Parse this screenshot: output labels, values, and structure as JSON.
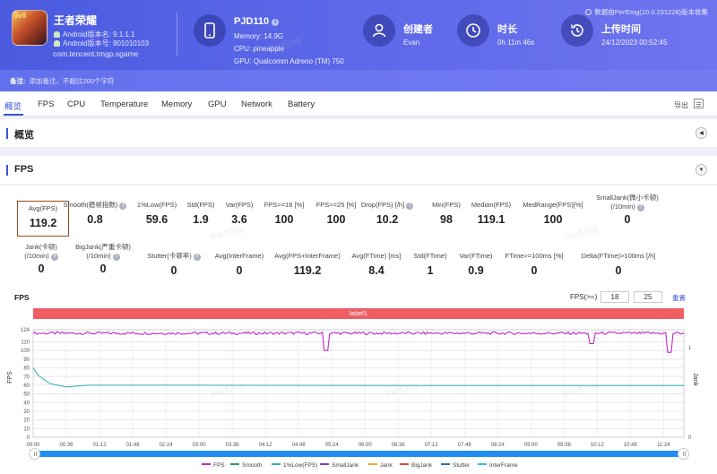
{
  "app": {
    "icon_badge": "5v5",
    "name": "王者荣耀",
    "android_version": "Android版本名: 9.1.1.1",
    "android_code": "Android版本号: 901010103",
    "package": "com.tencent.tmgp.sgame"
  },
  "device": {
    "name": "PJD110",
    "info_glyph": "i",
    "memory": "Memory: 14.9G",
    "cpu": "CPU: pineapple",
    "gpu": "GPU: Qualcomm Adreno (TM) 750"
  },
  "creator": {
    "title": "创建者",
    "value": "Evan"
  },
  "duration": {
    "title": "时长",
    "value": "0h 11m 46s"
  },
  "upload": {
    "title": "上传时间",
    "value": "24/12/2023 00:52:45"
  },
  "perfdog_version": "数据由PerfDog(10.0.231228)版本收集",
  "note": {
    "label": "备注:",
    "placeholder": "添加备注，不超过200个字符"
  },
  "tabs": [
    "概览",
    "FPS",
    "CPU",
    "Temperature",
    "Memory",
    "GPU",
    "Network",
    "Battery"
  ],
  "export_label": "导出",
  "sections": {
    "overview": "概览",
    "fps": "FPS"
  },
  "metrics_row1": [
    {
      "label": "Avg(FPS)",
      "value": "119.2",
      "help": false
    },
    {
      "label": "Smooth(稳帧指数)",
      "value": "0.8",
      "help": true
    },
    {
      "label": "1%Low(FPS)",
      "value": "59.6",
      "help": false
    },
    {
      "label": "Std(FPS)",
      "value": "1.9",
      "help": false
    },
    {
      "label": "Var(FPS)",
      "value": "3.6",
      "help": false
    },
    {
      "label": "FPS>=18 [%]",
      "value": "100",
      "help": false
    },
    {
      "label": "FPS>=25 [%]",
      "value": "100",
      "help": false
    },
    {
      "label": "Drop(FPS) [/h]",
      "value": "10.2",
      "help": true
    },
    {
      "label": "Min(FPS)",
      "value": "98",
      "help": false
    },
    {
      "label": "Median(FPS)",
      "value": "119.1",
      "help": false
    },
    {
      "label": "MedRange(FPS)[%]",
      "value": "100",
      "help": false
    },
    {
      "label": "SmallJank(微小卡顿)",
      "label2": "(/10min)",
      "value": "0",
      "help": true
    }
  ],
  "metrics_row2": [
    {
      "label": "Jank(卡顿)",
      "label2": "(/10min)",
      "value": "0",
      "help": true
    },
    {
      "label": "BigJank(严重卡顿)",
      "label2": "(/10min)",
      "value": "0",
      "help": true
    },
    {
      "label": "Stutter(卡顿率)",
      "value": "0",
      "help": true
    },
    {
      "label": "Avg(InterFrame)",
      "value": "0",
      "help": false
    },
    {
      "label": "Avg(FPS+InterFrame)",
      "value": "119.2",
      "help": false
    },
    {
      "label": "Avg(FTime) [ms]",
      "value": "8.4",
      "help": false
    },
    {
      "label": "Std(FTime)",
      "value": "1",
      "help": false
    },
    {
      "label": "Var(FTime)",
      "value": "0.9",
      "help": false
    },
    {
      "label": "FTime>=100ms [%]",
      "value": "0",
      "help": false
    },
    {
      "label": "Delta(FTime)>100ms [/h]",
      "value": "0",
      "help": false
    }
  ],
  "chart_controls": {
    "title": "FPS",
    "fps_label": "FPS(>=)",
    "fps_threshold_1": "18",
    "fps_threshold_2": "25",
    "reset_label": "重置"
  },
  "watermark": "PerfDog",
  "chart_data": {
    "type": "line",
    "title": "FPS",
    "band_label": "label1",
    "ylabel": "FPS",
    "ylabel_right": "Jank",
    "ylim": [
      0,
      124
    ],
    "yticks": [
      0,
      10,
      20,
      30,
      40,
      50,
      60,
      70,
      80,
      90,
      100,
      110,
      124
    ],
    "ylim_right": [
      0,
      1
    ],
    "yticks_right": [
      0,
      1
    ],
    "xlim": [
      "00:00",
      "11:46"
    ],
    "xticks": [
      "00:00",
      "00:36",
      "01:12",
      "01:48",
      "02:24",
      "03:00",
      "03:36",
      "04:12",
      "04:48",
      "05:24",
      "06:00",
      "06:36",
      "07:12",
      "07:48",
      "08:24",
      "09:00",
      "09:36",
      "10:12",
      "10:48",
      "11:24"
    ],
    "grid": true,
    "legend_position": "bottom",
    "series": [
      {
        "name": "FPS",
        "color": "#c026c9",
        "x_min": [
          0,
          5.1,
          5.3,
          9.9,
          10.1,
          11.3,
          11.5,
          11.77
        ],
        "values": [
          120,
          120,
          100,
          120,
          108,
          120,
          98,
          118
        ]
      },
      {
        "name": "Smooth",
        "color": "#2f9e62",
        "values": []
      },
      {
        "name": "1%Low(FPS)",
        "color": "#31b3a8",
        "x_min": [
          0,
          0.08,
          0.3,
          0.6,
          1.0,
          3.0,
          7.0,
          11.77
        ],
        "values": [
          80,
          72,
          62,
          58,
          60,
          60,
          59.6,
          59.6
        ]
      },
      {
        "name": "SmallJank",
        "color": "#7b3fbf",
        "values": []
      },
      {
        "name": "Jank",
        "color": "#f0a23a",
        "values": []
      },
      {
        "name": "BigJank",
        "color": "#e24a3b",
        "values": []
      },
      {
        "name": "Stutter",
        "color": "#2d6fb0",
        "values": []
      },
      {
        "name": "InterFrame",
        "color": "#31b9e8",
        "values": []
      }
    ]
  }
}
